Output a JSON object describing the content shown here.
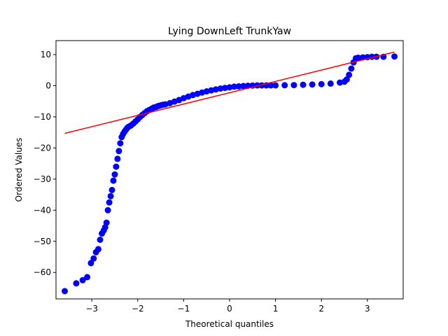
{
  "chart_data": {
    "type": "scatter",
    "title": "Lying DownLeft TrunkYaw",
    "xlabel": "Theoretical quantiles",
    "ylabel": "Ordered Values",
    "xlim": [
      -3.78,
      3.78
    ],
    "ylim": [
      -68.5,
      14.5
    ],
    "xticks": [
      -3,
      -2,
      -1,
      0,
      1,
      2,
      3
    ],
    "yticks": [
      -60,
      -50,
      -40,
      -30,
      -20,
      -10,
      0,
      10
    ],
    "xtick_labels": [
      "−3",
      "−2",
      "−1",
      "0",
      "1",
      "2",
      "3"
    ],
    "ytick_labels": [
      "−60",
      "−50",
      "−40",
      "−30",
      "−20",
      "−10",
      "0",
      "10"
    ],
    "grid": false,
    "colors": {
      "points": "#0000ff",
      "fit_line": "#ff0000"
    },
    "series": [
      {
        "kind": "points",
        "x": [
          -3.59,
          -3.34,
          -3.2,
          -3.1,
          -3.02,
          -2.96,
          -2.91,
          -2.86,
          -2.82,
          -2.78,
          -2.74,
          -2.71,
          -2.68,
          -2.65,
          -2.62,
          -2.59,
          -2.56,
          -2.53,
          -2.5,
          -2.47,
          -2.44,
          -2.41,
          -2.38,
          -2.35,
          -2.32,
          -2.29,
          -2.26,
          -2.23,
          -2.2,
          -2.15,
          -2.1,
          -2.05,
          -2.0,
          -1.95,
          -1.9,
          -1.85,
          -1.8,
          -1.75,
          -1.7,
          -1.65,
          -1.6,
          -1.55,
          -1.5,
          -1.45,
          -1.4,
          -1.3,
          -1.2,
          -1.1,
          -1.0,
          -0.9,
          -0.8,
          -0.7,
          -0.6,
          -0.5,
          -0.4,
          -0.3,
          -0.2,
          -0.1,
          0.0,
          0.1,
          0.2,
          0.3,
          0.4,
          0.5,
          0.6,
          0.7,
          0.8,
          0.9,
          1.0,
          1.2,
          1.4,
          1.6,
          1.8,
          2.0,
          2.2,
          2.4,
          2.5,
          2.55,
          2.6,
          2.65,
          2.7,
          2.75,
          2.8,
          2.9,
          3.0,
          3.1,
          3.2,
          3.35,
          3.59
        ],
        "y": [
          -66.0,
          -63.5,
          -62.5,
          -61.5,
          -57.0,
          -55.5,
          -53.5,
          -52.5,
          -49.5,
          -47.5,
          -46.5,
          -45.5,
          -44.0,
          -40.0,
          -37.5,
          -35.5,
          -33.5,
          -30.5,
          -28.5,
          -26.0,
          -23.5,
          -21.0,
          -18.5,
          -16.5,
          -15.5,
          -14.8,
          -14.2,
          -13.6,
          -13.2,
          -12.8,
          -12.2,
          -11.5,
          -10.8,
          -10.0,
          -9.4,
          -8.8,
          -8.2,
          -7.8,
          -7.4,
          -7.0,
          -6.8,
          -6.5,
          -6.3,
          -6.1,
          -6.0,
          -5.6,
          -5.1,
          -4.6,
          -4.0,
          -3.5,
          -3.0,
          -2.6,
          -2.2,
          -1.8,
          -1.5,
          -1.2,
          -0.9,
          -0.7,
          -0.5,
          -0.3,
          -0.2,
          -0.1,
          0.0,
          0.05,
          0.1,
          0.1,
          0.1,
          0.1,
          0.1,
          0.15,
          0.2,
          0.3,
          0.4,
          0.5,
          0.7,
          1.0,
          1.3,
          2.0,
          3.5,
          5.5,
          7.5,
          8.8,
          9.0,
          9.1,
          9.2,
          9.3,
          9.3,
          9.3,
          9.4
        ]
      },
      {
        "kind": "fit_line",
        "x": [
          -3.59,
          3.59
        ],
        "y": [
          -15.3,
          10.8
        ]
      }
    ]
  }
}
